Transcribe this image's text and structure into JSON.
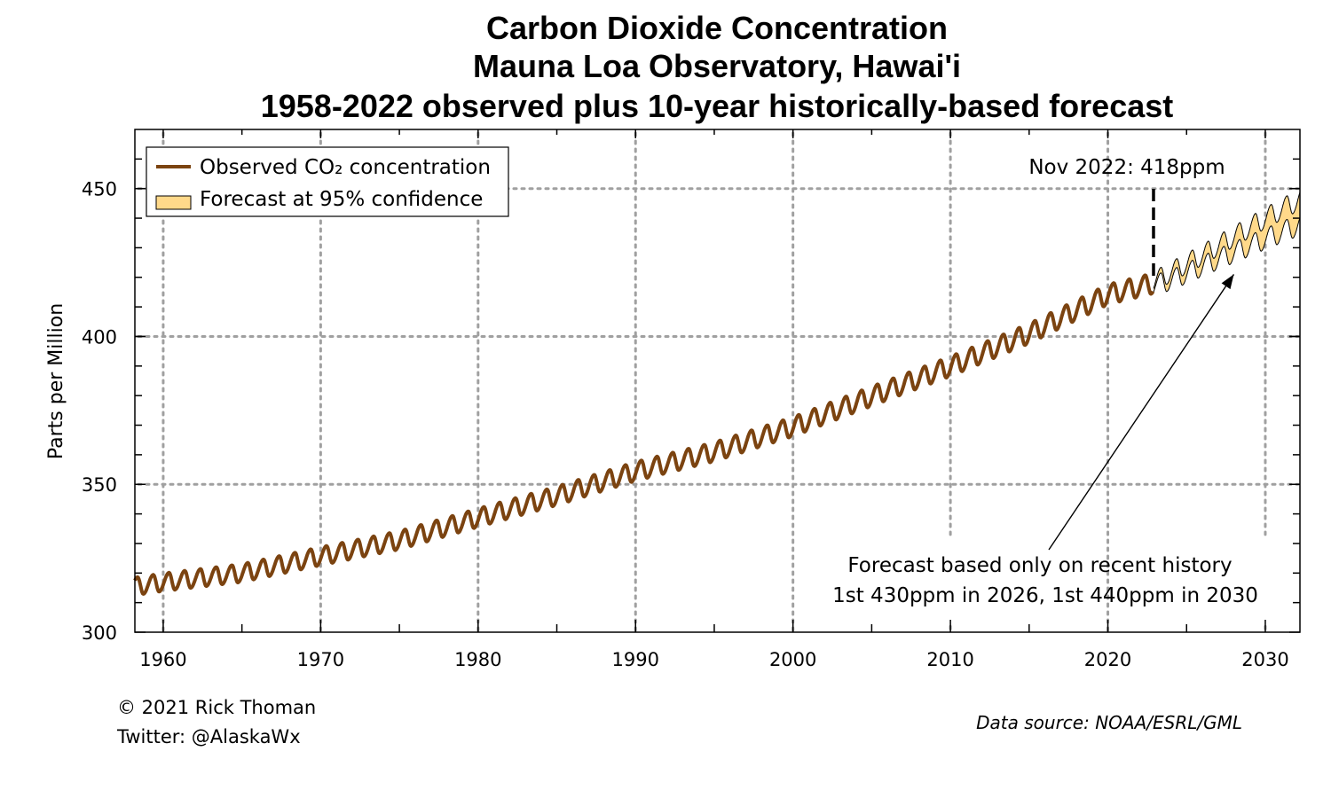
{
  "chart_data": {
    "type": "line",
    "title_lines": [
      "Carbon Dioxide Concentration",
      "Mauna Loa Observatory, Hawai'i",
      "1958-2022 observed plus 10-year historically-based forecast"
    ],
    "xlabel": "",
    "ylabel": "Parts per Million",
    "xlim": [
      1958.2,
      2032.2
    ],
    "ylim": [
      300,
      470
    ],
    "x_ticks": [
      1960,
      1970,
      1980,
      1990,
      2000,
      2010,
      2020,
      2030
    ],
    "y_ticks": [
      300,
      350,
      400,
      450
    ],
    "x_tick_labels": [
      "1960",
      "1970",
      "1980",
      "1990",
      "2000",
      "2010",
      "2020",
      "2030"
    ],
    "y_tick_labels": [
      "300",
      "350",
      "400",
      "450"
    ],
    "grid": true,
    "legend_position": "top-left",
    "legend": [
      {
        "label": "Observed CO₂ concentration",
        "color": "#7b4310",
        "kind": "line"
      },
      {
        "label": "Forecast at 95% confidence",
        "color": "#ffd98a",
        "kind": "band"
      }
    ],
    "series": [
      {
        "name": "Observed CO₂ concentration",
        "kind": "line",
        "color": "#7b4310",
        "seasonal_amplitude": [
          [
            1958,
            3.0
          ],
          [
            2022,
            3.4
          ]
        ],
        "x": [
          1958.2,
          1960,
          1965,
          1970,
          1975,
          1980,
          1985,
          1990,
          1995,
          2000,
          2005,
          2010,
          2015,
          2020,
          2022.9
        ],
        "y": [
          315.5,
          316.9,
          320.0,
          325.7,
          331.1,
          338.7,
          346.1,
          354.4,
          361.0,
          369.5,
          379.8,
          389.9,
          401.0,
          414.2,
          418.0
        ]
      },
      {
        "name": "Forecast at 95% confidence",
        "kind": "band",
        "color": "#ffd98a",
        "seasonal_amplitude": [
          [
            2022.9,
            3.4
          ],
          [
            2032.2,
            3.6
          ]
        ],
        "x": [
          2022.9,
          2024,
          2026,
          2028,
          2030,
          2032.2
        ],
        "y_lower": [
          417.4,
          419.0,
          423.8,
          428.4,
          433.0,
          437.8
        ],
        "y_upper": [
          418.6,
          421.8,
          427.6,
          433.8,
          440.0,
          446.4
        ]
      }
    ],
    "annotations": [
      {
        "text": "Nov 2022: 418ppm",
        "x": 2022.9,
        "y": 418
      },
      {
        "text": "Forecast based only on recent history",
        "line": 1
      },
      {
        "text": "1st 430ppm in 2026, 1st 440ppm in 2030",
        "line": 2,
        "x": 2028.0,
        "y": 421
      }
    ]
  },
  "credits": {
    "copyright": "© 2021 Rick Thoman",
    "twitter": "Twitter: @AlaskaWx",
    "source": "Data source: NOAA/ESRL/GML"
  }
}
